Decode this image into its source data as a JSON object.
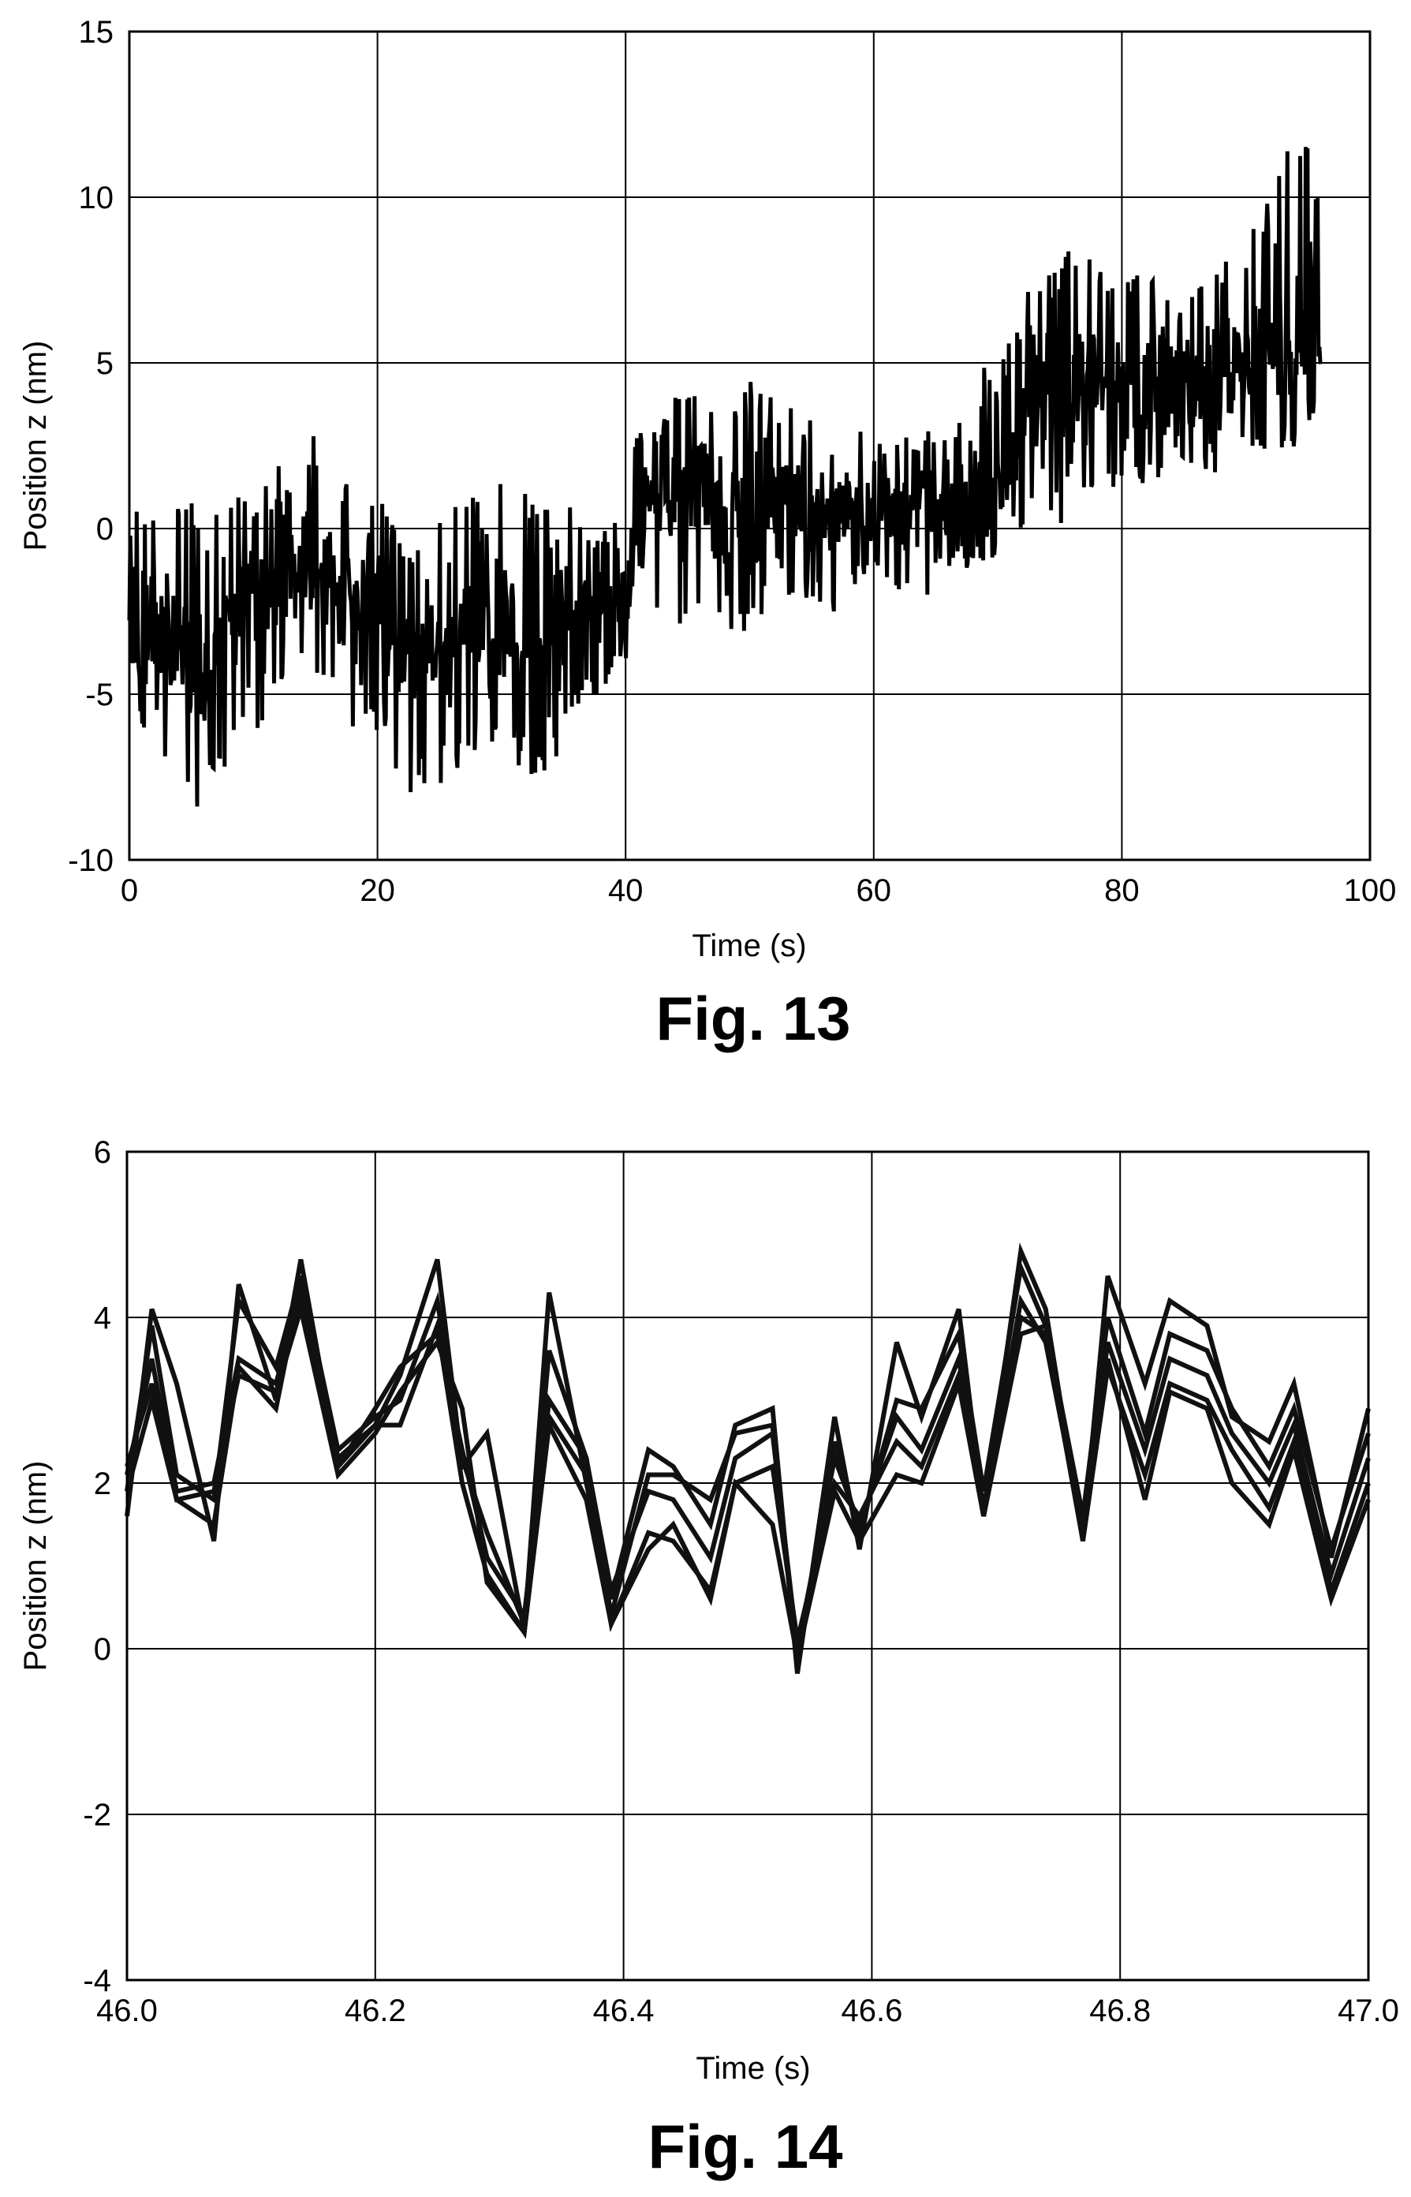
{
  "chart_data": [
    {
      "type": "line",
      "caption": "Fig. 13",
      "xlabel": "Time (s)",
      "ylabel": "Position z (nm)",
      "xlim": [
        0,
        100
      ],
      "ylim": [
        -10,
        15
      ],
      "xticks": [
        "0",
        "20",
        "40",
        "60",
        "80",
        "100"
      ],
      "yticks": [
        "-10",
        "-5",
        "0",
        "5",
        "10",
        "15"
      ],
      "grid": true,
      "series": [
        {
          "x": [
            0,
            2,
            4,
            6,
            8,
            10,
            12,
            14,
            16,
            18,
            20,
            22,
            24,
            26,
            28,
            30,
            32,
            34,
            36,
            38,
            40,
            41,
            42,
            44,
            46,
            48,
            50,
            52,
            54,
            56,
            58,
            60,
            62,
            64,
            66,
            68,
            70,
            72,
            74,
            76,
            78,
            80,
            82,
            84,
            86,
            88,
            90,
            92,
            94,
            95,
            96
          ],
          "y": [
            -3,
            -3.5,
            -4,
            -4.5,
            -2.5,
            -2,
            -1.5,
            -1,
            -1.5,
            -2,
            -2,
            -3.5,
            -4,
            -3,
            -2.5,
            -3,
            -3.5,
            -3,
            -3,
            -2.5,
            -3,
            0,
            0.5,
            1,
            1.5,
            0,
            1,
            1,
            0.5,
            0.5,
            1,
            0.5,
            0.5,
            1,
            0,
            1,
            1,
            3,
            4,
            4,
            4,
            4.5,
            5,
            5,
            4.5,
            5,
            5,
            5,
            5.5,
            6,
            6.5
          ],
          "ymin": [
            -6,
            -7,
            -8.5,
            -8.7,
            -7,
            -6.8,
            -5,
            -4.5,
            -5,
            -6,
            -6.5,
            -8,
            -8.2,
            -7.5,
            -7,
            -6.5,
            -7.5,
            -7.8,
            -5.5,
            -5,
            -4,
            -1,
            -2.5,
            -3,
            -2.5,
            -3.5,
            -3.5,
            -2,
            -2,
            -2.5,
            -2.5,
            -1,
            -2,
            -2,
            -2.5,
            -1,
            -1,
            0,
            0,
            0,
            0.5,
            1.5,
            1,
            1.5,
            1.5,
            1.5,
            2,
            2,
            2.5,
            3,
            3
          ],
          "ymax": [
            0.5,
            1,
            0.8,
            1.2,
            1.5,
            0.5,
            2.5,
            3,
            2.5,
            2.5,
            1.5,
            0,
            -0.5,
            1,
            1,
            1.5,
            1.5,
            2,
            0.5,
            0,
            0.5,
            3.5,
            3,
            4,
            4.5,
            3.5,
            4.5,
            4,
            3.5,
            3,
            3.5,
            2.5,
            3,
            3,
            3,
            5,
            5,
            7,
            8,
            9,
            8,
            8,
            8,
            7,
            7.5,
            8,
            9,
            10,
            12.5,
            12.3,
            10
          ]
        }
      ]
    },
    {
      "type": "line",
      "caption": "Fig. 14",
      "xlabel": "Time (s)",
      "ylabel": "Position z (nm)",
      "xlim": [
        46.0,
        47.0
      ],
      "ylim": [
        -4,
        6
      ],
      "xticks": [
        "46.0",
        "46.2",
        "46.4",
        "46.6",
        "46.8",
        "47.0"
      ],
      "yticks": [
        "-4",
        "-2",
        "0",
        "2",
        "4",
        "6"
      ],
      "grid": true,
      "x": [
        46.0,
        46.02,
        46.04,
        46.07,
        46.09,
        46.12,
        46.14,
        46.17,
        46.2,
        46.22,
        46.25,
        46.27,
        46.29,
        46.32,
        46.34,
        46.37,
        46.39,
        46.42,
        46.44,
        46.47,
        46.49,
        46.52,
        46.54,
        46.57,
        46.59,
        46.62,
        46.64,
        46.67,
        46.69,
        46.72,
        46.74,
        46.77,
        46.79,
        46.82,
        46.84,
        46.87,
        46.89,
        46.92,
        46.94,
        46.97,
        47.0
      ],
      "series": [
        {
          "values": [
            1.6,
            4.1,
            3.2,
            1.3,
            4.4,
            3.0,
            4.7,
            2.2,
            2.7,
            3.3,
            4.7,
            2.2,
            2.6,
            0.2,
            4.3,
            2.0,
            0.6,
            2.4,
            2.2,
            1.5,
            2.7,
            2.9,
            -0.3,
            2.8,
            1.2,
            3.7,
            2.8,
            4.1,
            1.6,
            4.8,
            4.1,
            1.3,
            4.5,
            3.2,
            4.2,
            3.9,
            2.8,
            2.5,
            3.2,
            1.1,
            2.9
          ]
        },
        {
          "values": [
            1.9,
            3.9,
            2.1,
            1.8,
            4.2,
            3.4,
            4.5,
            2.4,
            2.8,
            3.0,
            4.2,
            2.3,
            1.4,
            0.3,
            3.6,
            2.3,
            0.4,
            2.1,
            2.1,
            1.8,
            2.6,
            2.7,
            -0.2,
            2.5,
            1.4,
            3.0,
            2.9,
            3.8,
            1.9,
            4.6,
            3.9,
            1.6,
            4.0,
            2.6,
            3.8,
            3.6,
            2.9,
            2.2,
            2.9,
            1.2,
            2.6
          ]
        },
        {
          "values": [
            2.1,
            3.5,
            1.9,
            2.0,
            3.5,
            3.2,
            4.3,
            2.2,
            2.9,
            3.4,
            3.8,
            2.4,
            1.1,
            0.4,
            3.0,
            2.3,
            0.7,
            1.9,
            1.8,
            1.1,
            2.3,
            2.6,
            0.0,
            2.3,
            1.5,
            2.8,
            2.4,
            3.5,
            1.7,
            4.2,
            3.7,
            1.4,
            3.7,
            2.4,
            3.5,
            3.3,
            2.6,
            2.0,
            2.7,
            0.9,
            2.3
          ]
        },
        {
          "values": [
            2.2,
            3.2,
            1.8,
            1.9,
            3.3,
            3.1,
            4.1,
            2.1,
            2.6,
            3.1,
            3.7,
            2.9,
            0.8,
            0.2,
            2.8,
            2.1,
            0.3,
            1.2,
            1.5,
            0.6,
            2.0,
            2.2,
            0.1,
            2.0,
            1.6,
            2.5,
            2.2,
            3.3,
            1.6,
            4.0,
            3.8,
            1.3,
            3.4,
            2.1,
            3.2,
            3.0,
            2.4,
            1.7,
            2.5,
            0.7,
            2.0
          ]
        },
        {
          "values": [
            1.9,
            3.0,
            1.8,
            1.5,
            3.4,
            2.9,
            4.4,
            2.3,
            2.7,
            2.7,
            3.9,
            2.0,
            0.9,
            0.2,
            2.7,
            1.8,
            0.3,
            1.4,
            1.3,
            0.7,
            2.0,
            1.5,
            -0.1,
            1.9,
            1.3,
            2.1,
            2.0,
            3.2,
            1.6,
            3.8,
            3.9,
            1.5,
            3.5,
            1.8,
            3.1,
            2.9,
            2.0,
            1.5,
            2.4,
            0.6,
            1.8
          ]
        }
      ]
    }
  ]
}
